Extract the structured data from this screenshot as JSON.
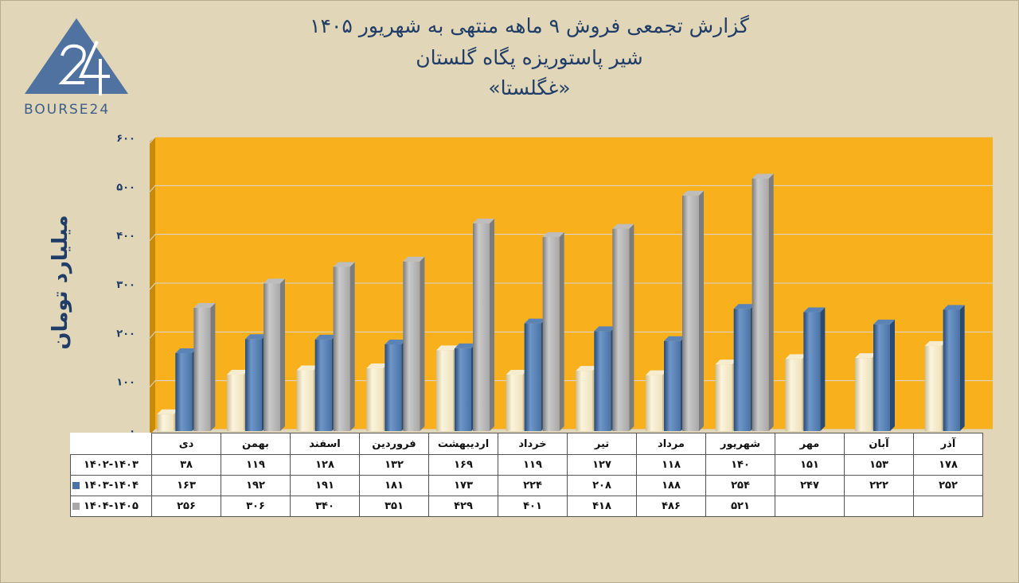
{
  "title": {
    "line1": "گزارش تجمعی فروش ۹ ماهه منتهی به شهریور ۱۴۰۵",
    "line2": "شیر پاستوریزه پگاه گلستان",
    "line3": "«غگلستا»"
  },
  "logo": {
    "text": "BOURSE24",
    "mark": "24"
  },
  "colors": {
    "background": "#e2d6b9",
    "plot": "#f8b01c",
    "series_1402_1403": "#eee2bb",
    "series_1403_1404": "#4a74a8",
    "series_1404_1405": "#a8a8a8",
    "text": "#1f3d66"
  },
  "chart_data": {
    "type": "bar",
    "ylabel": "میلیارد تومان",
    "ylim": [
      0,
      600
    ],
    "yticks": [
      "۰",
      "۱۰۰",
      "۲۰۰",
      "۳۰۰",
      "۴۰۰",
      "۵۰۰",
      "۶۰۰"
    ],
    "grid": true,
    "categories": [
      "دی",
      "بهمن",
      "اسفند",
      "فروردین",
      "اردیبهشت",
      "خرداد",
      "تیر",
      "مرداد",
      "شهریور",
      "مهر",
      "آبان",
      "آذر"
    ],
    "series": [
      {
        "name": "۱۴۰۲-۱۴۰۳",
        "values": [
          38,
          119,
          128,
          132,
          169,
          119,
          127,
          118,
          140,
          151,
          153,
          178
        ],
        "labels": [
          "۳۸",
          "۱۱۹",
          "۱۲۸",
          "۱۳۲",
          "۱۶۹",
          "۱۱۹",
          "۱۲۷",
          "۱۱۸",
          "۱۴۰",
          "۱۵۱",
          "۱۵۳",
          "۱۷۸"
        ]
      },
      {
        "name": "۱۴۰۳-۱۴۰۴",
        "values": [
          163,
          192,
          191,
          181,
          173,
          224,
          208,
          188,
          254,
          247,
          222,
          252
        ],
        "labels": [
          "۱۶۳",
          "۱۹۲",
          "۱۹۱",
          "۱۸۱",
          "۱۷۳",
          "۲۲۴",
          "۲۰۸",
          "۱۸۸",
          "۲۵۴",
          "۲۴۷",
          "۲۲۲",
          "۲۵۲"
        ]
      },
      {
        "name": "۱۴۰۴-۱۴۰۵",
        "values": [
          256,
          306,
          340,
          351,
          429,
          401,
          418,
          486,
          521,
          null,
          null,
          null
        ],
        "labels": [
          "۲۵۶",
          "۳۰۶",
          "۳۴۰",
          "۳۵۱",
          "۴۲۹",
          "۴۰۱",
          "۴۱۸",
          "۴۸۶",
          "۵۲۱",
          "",
          "",
          ""
        ]
      }
    ]
  }
}
